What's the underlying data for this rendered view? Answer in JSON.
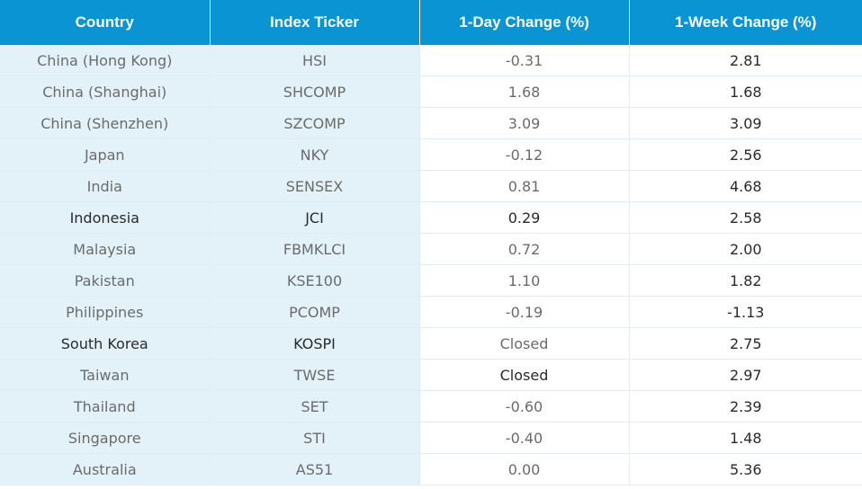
{
  "table": {
    "headers": [
      "Country",
      "Index Ticker",
      "1-Day Change (%)",
      "1-Week Change (%)"
    ],
    "rows": [
      [
        "China (Hong Kong)",
        "HSI",
        "-0.31",
        "2.81"
      ],
      [
        "China (Shanghai)",
        "SHCOMP",
        "1.68",
        "1.68"
      ],
      [
        "China (Shenzhen)",
        "SZCOMP",
        "3.09",
        "3.09"
      ],
      [
        "Japan",
        "NKY",
        "-0.12",
        "2.56"
      ],
      [
        "India",
        "SENSEX",
        "0.81",
        "4.68"
      ],
      [
        "Indonesia",
        "JCI",
        "0.29",
        "2.58"
      ],
      [
        "Malaysia",
        "FBMKLCI",
        "0.72",
        "2.00"
      ],
      [
        "Pakistan",
        "KSE100",
        "1.10",
        "1.82"
      ],
      [
        "Philippines",
        "PCOMP",
        "-0.19",
        "-1.13"
      ],
      [
        "South Korea",
        "KOSPI",
        "Closed",
        "2.75"
      ],
      [
        "Taiwan",
        "TWSE",
        "Closed",
        "2.97"
      ],
      [
        "Thailand",
        "SET",
        "-0.60",
        "2.39"
      ],
      [
        "Singapore",
        "STI",
        "-0.40",
        "1.48"
      ],
      [
        "Australia",
        "AS51",
        "0.00",
        "5.36"
      ]
    ]
  },
  "colors": {
    "header_bg": "#0a94d4",
    "header_text": "#ffffff",
    "shaded_column_bg": "#e3f2f9",
    "body_text": "#6b6b6b",
    "grid_line": "#dceef7"
  }
}
